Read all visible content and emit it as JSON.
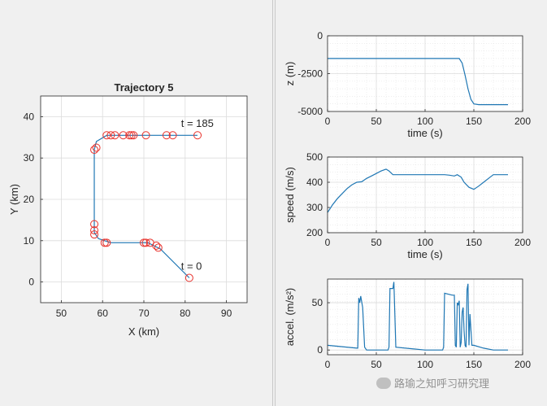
{
  "colors": {
    "line": "#1f77b4",
    "marker": "#e8302a",
    "axis": "#262626",
    "grid": "#dcdcdc",
    "background": "#f0f0f0"
  },
  "watermark": {
    "text": "路瑜之知呼习研究理",
    "icon": "wechat-icon"
  },
  "chart_data": [
    {
      "type": "line",
      "title": "Trajectory 5",
      "xlabel": "X (km)",
      "ylabel": "Y (km)",
      "xlim": [
        45,
        95
      ],
      "ylim": [
        -5,
        45
      ],
      "xticks": [
        50,
        60,
        70,
        80,
        90
      ],
      "yticks": [
        0,
        10,
        20,
        30,
        40
      ],
      "grid": true,
      "series": [
        {
          "x": [
            81,
            74,
            71,
            62,
            59,
            58,
            58,
            58,
            58.5,
            61,
            65,
            70,
            80,
            83
          ],
          "y": [
            1,
            8,
            9.5,
            9.5,
            10.5,
            12,
            20,
            32,
            34,
            35.5,
            35.5,
            35.5,
            35.5,
            35.5
          ]
        }
      ],
      "markers": {
        "x": [
          81,
          73.5,
          73,
          71.5,
          70.5,
          70,
          61,
          60.5,
          58,
          58,
          58,
          58,
          58.5,
          61,
          62,
          63,
          65,
          66.5,
          67,
          67.5,
          70.5,
          75.5,
          77,
          83
        ],
        "y": [
          1,
          8.3,
          8.8,
          9.5,
          9.5,
          9.5,
          9.5,
          9.5,
          11.5,
          12.5,
          14,
          32,
          32.5,
          35.5,
          35.5,
          35.5,
          35.5,
          35.5,
          35.5,
          35.5,
          35.5,
          35.5,
          35.5,
          35.5
        ]
      },
      "annotations": [
        {
          "text": "t = 185",
          "x": 79,
          "y": 37.5
        },
        {
          "text": "t = 0",
          "x": 79,
          "y": 3
        }
      ]
    },
    {
      "type": "line",
      "xlabel": "time (s)",
      "ylabel": "z (m)",
      "xlim": [
        0,
        200
      ],
      "ylim": [
        -5000,
        0
      ],
      "y_reversed": true,
      "xticks": [
        0,
        50,
        100,
        150,
        200
      ],
      "yticks": [
        -5000,
        -2500,
        0
      ],
      "grid": true,
      "series": [
        {
          "x": [
            0,
            135,
            138,
            141,
            144,
            147,
            150,
            155,
            185
          ],
          "y": [
            -1500,
            -1500,
            -1800,
            -2600,
            -3500,
            -4200,
            -4500,
            -4550,
            -4550
          ]
        }
      ]
    },
    {
      "type": "line",
      "xlabel": "time (s)",
      "ylabel": "speed (m/s)",
      "xlim": [
        0,
        200
      ],
      "ylim": [
        200,
        500
      ],
      "xticks": [
        0,
        50,
        100,
        150,
        200
      ],
      "yticks": [
        200,
        300,
        400,
        500
      ],
      "grid": true,
      "series": [
        {
          "x": [
            0,
            5,
            10,
            15,
            20,
            25,
            30,
            35,
            40,
            45,
            50,
            55,
            60,
            63,
            67,
            70,
            80,
            100,
            120,
            125,
            130,
            133,
            137,
            140,
            145,
            150,
            155,
            160,
            165,
            170,
            175,
            185
          ],
          "y": [
            280,
            310,
            335,
            355,
            375,
            390,
            400,
            402,
            415,
            425,
            435,
            445,
            452,
            445,
            430,
            430,
            430,
            430,
            430,
            428,
            425,
            430,
            420,
            400,
            380,
            372,
            385,
            400,
            415,
            430,
            430,
            430
          ]
        }
      ]
    },
    {
      "type": "line",
      "xlabel": "",
      "ylabel": "accel. (m/s²)",
      "xlim": [
        0,
        200
      ],
      "ylim": [
        -5,
        75
      ],
      "xticks": [
        0,
        50,
        100,
        150,
        200
      ],
      "yticks": [
        0,
        50
      ],
      "grid": true,
      "series": [
        {
          "x": [
            0,
            30,
            31,
            32,
            33,
            34,
            36,
            38,
            40,
            60,
            62,
            63,
            64,
            65,
            66,
            67,
            68,
            70,
            100,
            118,
            119,
            120,
            128,
            130,
            131,
            132,
            133,
            134,
            135,
            136,
            137,
            138,
            139,
            140,
            141,
            142,
            143,
            144,
            145,
            146,
            148,
            150,
            160,
            170,
            185
          ],
          "y": [
            5,
            2,
            2,
            55,
            50,
            57,
            45,
            3,
            0,
            0,
            0,
            3,
            65,
            65,
            65,
            65,
            72,
            3,
            0,
            0,
            3,
            60,
            58,
            58,
            5,
            3,
            50,
            48,
            52,
            3,
            8,
            40,
            45,
            20,
            5,
            3,
            64,
            70,
            5,
            38,
            5,
            5,
            2,
            0,
            0
          ]
        }
      ]
    }
  ]
}
